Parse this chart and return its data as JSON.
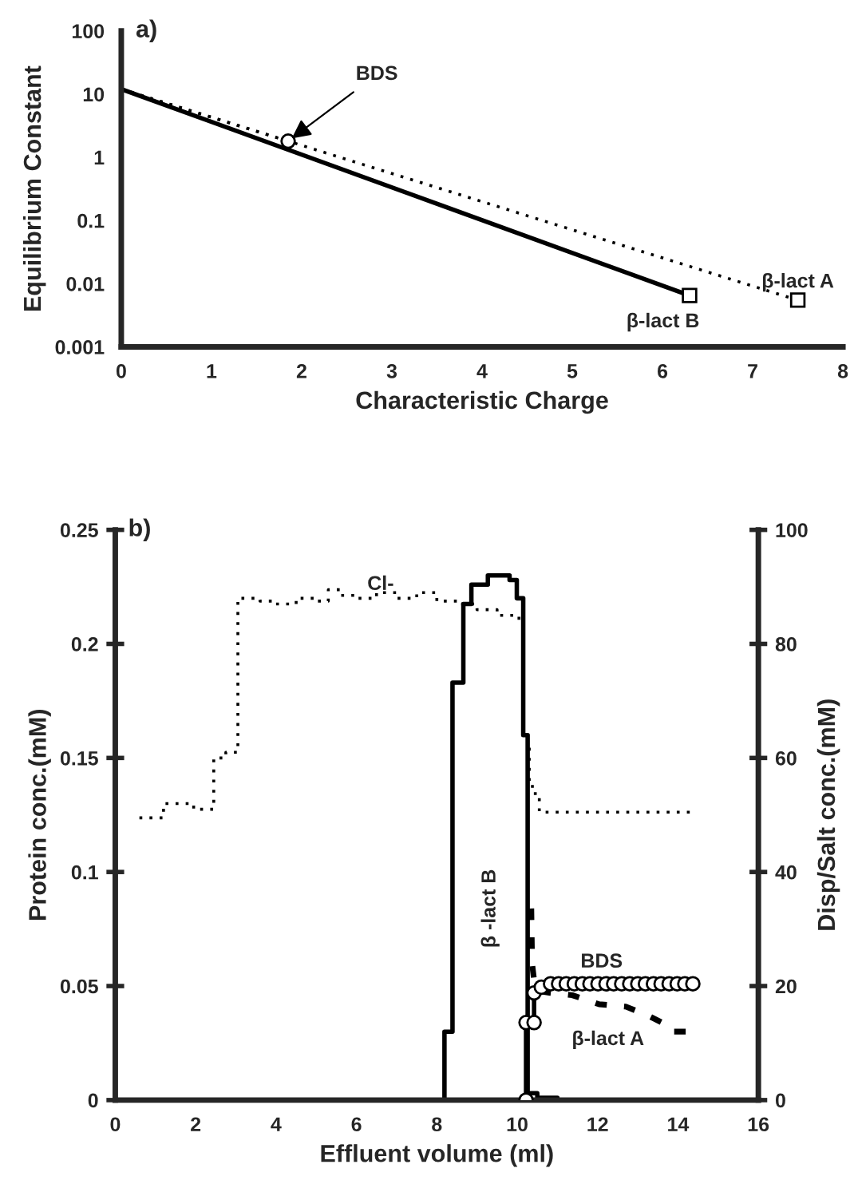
{
  "chart_data": [
    {
      "type": "line",
      "title": "a)",
      "xlabel": "Characteristic Charge",
      "ylabel": "Equilibrium Constant",
      "log": "y",
      "xlim": [
        0,
        8
      ],
      "xticks": [
        0,
        1,
        2,
        3,
        4,
        5,
        6,
        7,
        8
      ],
      "ylim": [
        0.001,
        100
      ],
      "yticks": [
        0.001,
        0.01,
        0.1,
        1,
        10,
        100
      ],
      "grid": false,
      "legend": false,
      "series": [
        {
          "color": "#000000",
          "x": [
            0,
            6.3
          ],
          "values": [
            12,
            0.0065
          ],
          "line_style": "solid",
          "marker": "square"
        },
        {
          "color": "#000000",
          "x": [
            0,
            7.5
          ],
          "values": [
            12,
            0.0055
          ],
          "line_style": "dotted",
          "marker": "square"
        },
        {
          "color": "#000000",
          "x": [
            0,
            1.85
          ],
          "values": [
            12,
            1.8
          ],
          "line_style": "dotted",
          "marker": "circle"
        }
      ],
      "annotations": [
        {
          "text": "BDS",
          "x": 1.85,
          "y": 1.8
        },
        {
          "text": "β-lact B",
          "x": 6.3,
          "y": 0.0065
        },
        {
          "text": "β-lact A",
          "x": 7.5,
          "y": 0.0055
        }
      ]
    },
    {
      "type": "line",
      "title": "b)",
      "xlabel": "Effluent volume (ml)",
      "ylabel": "Protein conc.(mM)",
      "y2label": "Disp/Salt conc.(mM)",
      "xlim": [
        0,
        16
      ],
      "xticks": [
        0,
        2,
        4,
        6,
        8,
        10,
        12,
        14,
        16
      ],
      "ylim": [
        0,
        0.25
      ],
      "yticks": [
        0,
        0.05,
        0.1,
        0.15,
        0.2,
        0.25
      ],
      "y2lim": [
        0,
        100
      ],
      "y2ticks": [
        0,
        20,
        40,
        60,
        80,
        100
      ],
      "grid": false,
      "legend": false,
      "series": [
        {
          "type": "step",
          "axis": "y2",
          "color": "#000000",
          "line_style": "dotted",
          "x": [
            0.6,
            1.2,
            1.95,
            2.45,
            2.75,
            3.05,
            3.6,
            4.0,
            4.5,
            5.0,
            5.3,
            5.6,
            6.0,
            6.5,
            7.0,
            7.5,
            8.0,
            8.5,
            9.0,
            9.5,
            10.0,
            10.15,
            10.3,
            10.45,
            10.55,
            14.3
          ],
          "values": [
            49.5,
            52,
            51,
            60,
            61,
            88,
            87.5,
            87,
            88,
            87.5,
            89.5,
            88.5,
            88,
            89,
            88,
            89,
            87.5,
            87,
            86,
            85,
            84.5,
            63,
            55,
            53,
            50.5,
            50.5
          ]
        },
        {
          "type": "step",
          "color": "#000000",
          "line_style": "solid",
          "x": [
            8.19,
            8.19,
            8.39,
            8.66,
            8.86,
            9.27,
            9.81,
            9.99,
            10.15,
            10.26,
            10.5,
            11.0
          ],
          "values": [
            0,
            0.03,
            0.183,
            0.2175,
            0.226,
            0.23,
            0.228,
            0.22,
            0.16,
            0.003,
            0.001,
            0
          ]
        },
        {
          "type": "line",
          "color": "#000000",
          "line_style": "dashed",
          "x": [
            10.35,
            10.37,
            10.45,
            10.83,
            11.37,
            12.04,
            12.7,
            13.26,
            13.6,
            13.8,
            14.28
          ],
          "values": [
            0.084,
            0.06,
            0.048,
            0.047,
            0.046,
            0.042,
            0.041,
            0.037,
            0.034,
            0.03,
            0.03
          ]
        },
        {
          "type": "line",
          "axis": "y2",
          "color": "#000000",
          "line_style": "solid",
          "marker": "circle",
          "x": [
            10.22,
            10.22,
            10.42,
            10.42,
            10.6,
            10.83,
            11.03,
            11.22,
            11.42,
            11.62,
            11.81,
            12.01,
            12.21,
            12.4,
            12.6,
            12.8,
            13.0,
            13.19,
            13.39,
            13.58,
            13.78,
            13.98,
            14.17,
            14.37
          ],
          "values": [
            0,
            13.6,
            13.6,
            18.8,
            19.8,
            20.4,
            20.4,
            20.4,
            20.4,
            20.4,
            20.4,
            20.4,
            20.4,
            20.4,
            20.4,
            20.4,
            20.4,
            20.4,
            20.4,
            20.4,
            20.4,
            20.4,
            20.4,
            20.4
          ]
        }
      ],
      "annotations": [
        {
          "text": "Cl-",
          "x": 6.16,
          "y": 0.224
        },
        {
          "text": "β -lact B",
          "x": 8.39,
          "y": 0.084
        },
        {
          "text": "BDS",
          "x": 12.1,
          "y": 0.0565
        },
        {
          "text": "β-lact A",
          "x": 12.7,
          "y": 0.041
        }
      ]
    }
  ]
}
